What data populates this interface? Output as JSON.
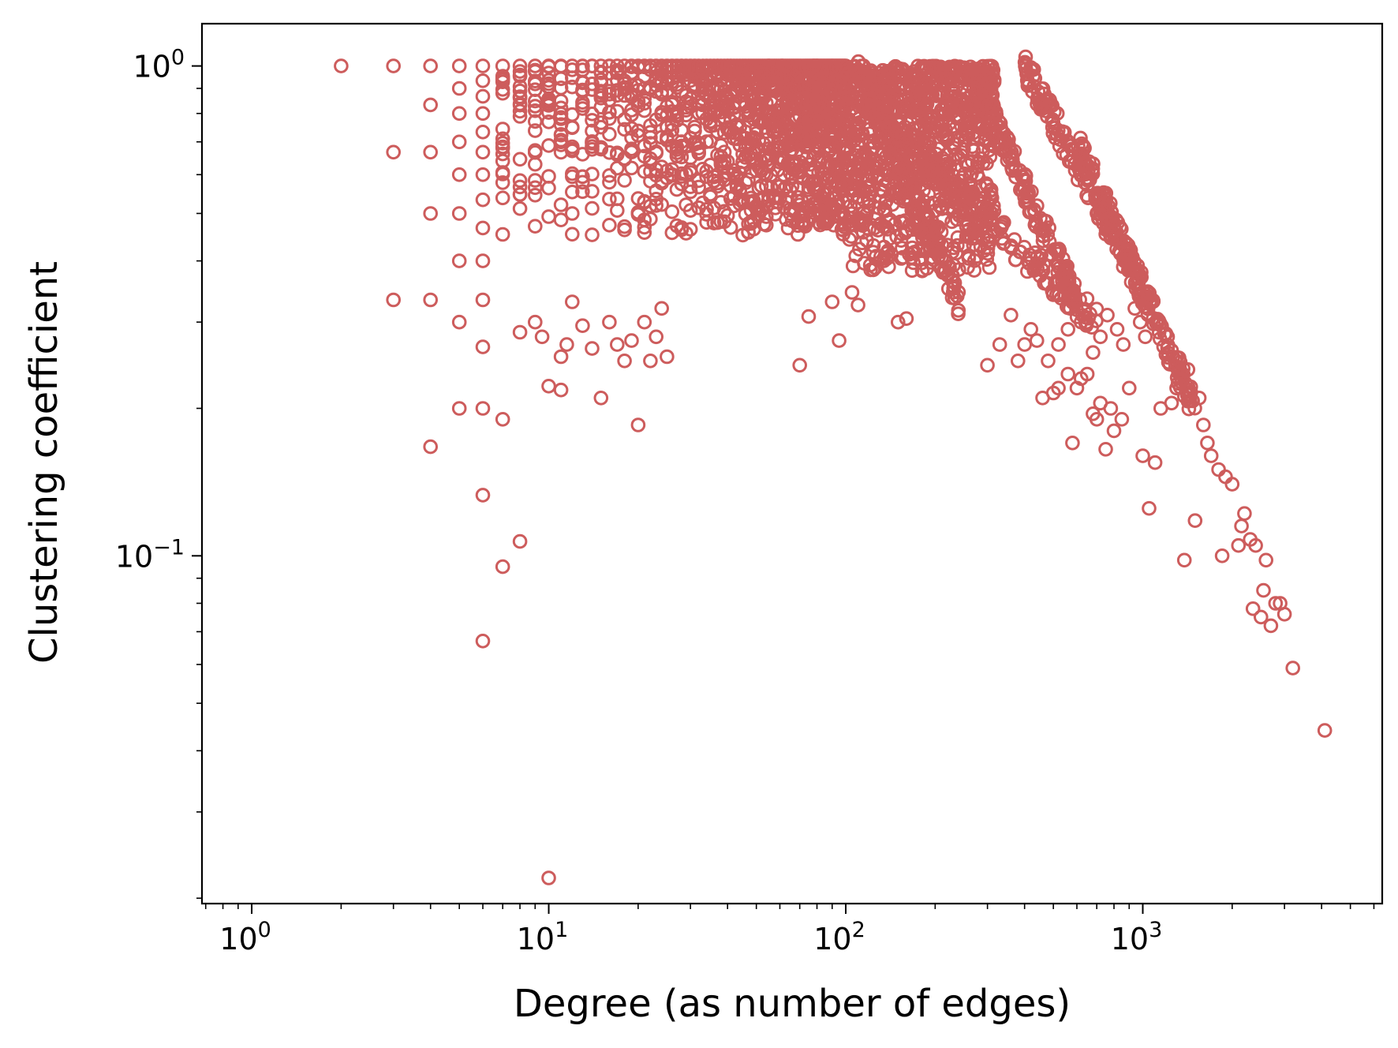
{
  "chart_data": {
    "type": "scatter",
    "title": "",
    "xlabel": "Degree (as number of edges)",
    "ylabel": "Clustering coefficient",
    "xscale": "log",
    "yscale": "log",
    "xlim": [
      0.68,
      6400
    ],
    "ylim": [
      0.0195,
      1.22
    ],
    "grid": false,
    "legend": "none",
    "marker": "open-circle",
    "colors": {
      "marker": "#cd5c5c",
      "axis": "#000000",
      "background": "#ffffff"
    },
    "x_ticks": [
      {
        "value": 1,
        "base": "10",
        "exp": "0"
      },
      {
        "value": 10,
        "base": "10",
        "exp": "1"
      },
      {
        "value": 100,
        "base": "10",
        "exp": "2"
      },
      {
        "value": 1000,
        "base": "10",
        "exp": "3"
      }
    ],
    "y_ticks": [
      {
        "value": 0.1,
        "base": "10",
        "exp": "−1"
      },
      {
        "value": 1,
        "base": "10",
        "exp": "0"
      }
    ],
    "points": [
      [
        2,
        1
      ],
      [
        3,
        1
      ],
      [
        3,
        0.667
      ],
      [
        3,
        0.333
      ],
      [
        4,
        1
      ],
      [
        4,
        0.833
      ],
      [
        4,
        0.667
      ],
      [
        4,
        0.5
      ],
      [
        4,
        0.333
      ],
      [
        4,
        0.167
      ],
      [
        5,
        1
      ],
      [
        5,
        0.9
      ],
      [
        5,
        0.8
      ],
      [
        5,
        0.7
      ],
      [
        5,
        0.6
      ],
      [
        5,
        0.5
      ],
      [
        5,
        0.4
      ],
      [
        5,
        0.3
      ],
      [
        5,
        0.2
      ],
      [
        6,
        1
      ],
      [
        6,
        0.933
      ],
      [
        6,
        0.867
      ],
      [
        6,
        0.8
      ],
      [
        6,
        0.733
      ],
      [
        6,
        0.667
      ],
      [
        6,
        0.6
      ],
      [
        6,
        0.533
      ],
      [
        6,
        0.467
      ],
      [
        6,
        0.4
      ],
      [
        6,
        0.333
      ],
      [
        6,
        0.267
      ],
      [
        6,
        0.2
      ],
      [
        6,
        0.133
      ],
      [
        6,
        0.067
      ],
      [
        7,
        0.19
      ],
      [
        7,
        0.095
      ],
      [
        8,
        0.107
      ],
      [
        10,
        0.022
      ],
      [
        8,
        0.286
      ],
      [
        9,
        0.3
      ],
      [
        9.5,
        0.28
      ],
      [
        10,
        0.222
      ],
      [
        11,
        0.218
      ],
      [
        11,
        0.255
      ],
      [
        11.5,
        0.27
      ],
      [
        12,
        0.33
      ],
      [
        13,
        0.295
      ],
      [
        14,
        0.265
      ],
      [
        15,
        0.21
      ],
      [
        16,
        0.3
      ],
      [
        17,
        0.27
      ],
      [
        18,
        0.25
      ],
      [
        19,
        0.275
      ],
      [
        20,
        0.185
      ],
      [
        21,
        0.3
      ],
      [
        22,
        0.25
      ],
      [
        23,
        0.28
      ],
      [
        24,
        0.32
      ],
      [
        25,
        0.255
      ],
      [
        70,
        0.245
      ],
      [
        75,
        0.308
      ],
      [
        90,
        0.33
      ],
      [
        95,
        0.275
      ],
      [
        105,
        0.345
      ],
      [
        110,
        0.325
      ],
      [
        150,
        0.3
      ],
      [
        160,
        0.305
      ],
      [
        500,
        0.215
      ],
      [
        520,
        0.22
      ],
      [
        560,
        0.235
      ],
      [
        580,
        0.17
      ],
      [
        600,
        0.22
      ],
      [
        620,
        0.23
      ],
      [
        650,
        0.235
      ],
      [
        680,
        0.195
      ],
      [
        700,
        0.19
      ],
      [
        720,
        0.205
      ],
      [
        750,
        0.165
      ],
      [
        780,
        0.2
      ],
      [
        800,
        0.18
      ],
      [
        850,
        0.19
      ],
      [
        900,
        0.22
      ],
      [
        1000,
        0.16
      ],
      [
        1050,
        0.125
      ],
      [
        1100,
        0.155
      ],
      [
        1150,
        0.2
      ],
      [
        1250,
        0.205
      ],
      [
        1300,
        0.22
      ],
      [
        1350,
        0.23
      ],
      [
        1380,
        0.098
      ],
      [
        1420,
        0.24
      ],
      [
        1500,
        0.118
      ],
      [
        1550,
        0.21
      ],
      [
        1600,
        0.185
      ],
      [
        1650,
        0.17
      ],
      [
        1700,
        0.16
      ],
      [
        1800,
        0.15
      ],
      [
        1850,
        0.1
      ],
      [
        1900,
        0.145
      ],
      [
        2000,
        0.14
      ],
      [
        2100,
        0.105
      ],
      [
        2150,
        0.115
      ],
      [
        2200,
        0.122
      ],
      [
        2300,
        0.108
      ],
      [
        2350,
        0.078
      ],
      [
        2400,
        0.105
      ],
      [
        2500,
        0.075
      ],
      [
        2550,
        0.085
      ],
      [
        2600,
        0.098
      ],
      [
        2700,
        0.072
      ],
      [
        2800,
        0.08
      ],
      [
        2900,
        0.08
      ],
      [
        3000,
        0.076
      ],
      [
        3200,
        0.059
      ],
      [
        4100,
        0.044
      ],
      [
        300,
        0.245
      ],
      [
        330,
        0.27
      ],
      [
        360,
        0.31
      ],
      [
        380,
        0.25
      ],
      [
        400,
        0.27
      ],
      [
        420,
        0.29
      ],
      [
        440,
        0.275
      ],
      [
        460,
        0.21
      ],
      [
        480,
        0.25
      ],
      [
        520,
        0.27
      ],
      [
        560,
        0.29
      ],
      [
        620,
        0.3
      ],
      [
        680,
        0.26
      ],
      [
        720,
        0.28
      ],
      [
        760,
        0.31
      ],
      [
        820,
        0.29
      ],
      [
        860,
        0.27
      ],
      [
        940,
        0.32
      ],
      [
        980,
        0.3
      ],
      [
        1020,
        0.28
      ]
    ],
    "dense_regions": {
      "comment": "bulk of nodes; clustering in [~0.45, 1] for degree 7-100",
      "x_range": [
        7,
        100
      ],
      "y_range": [
        0.42,
        1.0
      ]
    },
    "upper_bands": [
      {
        "x_start": 110,
        "x_end": 240,
        "y_start": 1.0,
        "y_end": 0.33
      },
      {
        "x_start": 260,
        "x_end": 600,
        "y_start": 1.0,
        "y_end": 0.33
      },
      {
        "x_start": 400,
        "x_end": 1050,
        "y_start": 1.0,
        "y_end": 0.33
      },
      {
        "x_start": 140,
        "x_end": 700,
        "y_start": 0.75,
        "y_end": 0.3
      },
      {
        "x_start": 600,
        "x_end": 1500,
        "y_start": 0.7,
        "y_end": 0.2
      }
    ]
  }
}
